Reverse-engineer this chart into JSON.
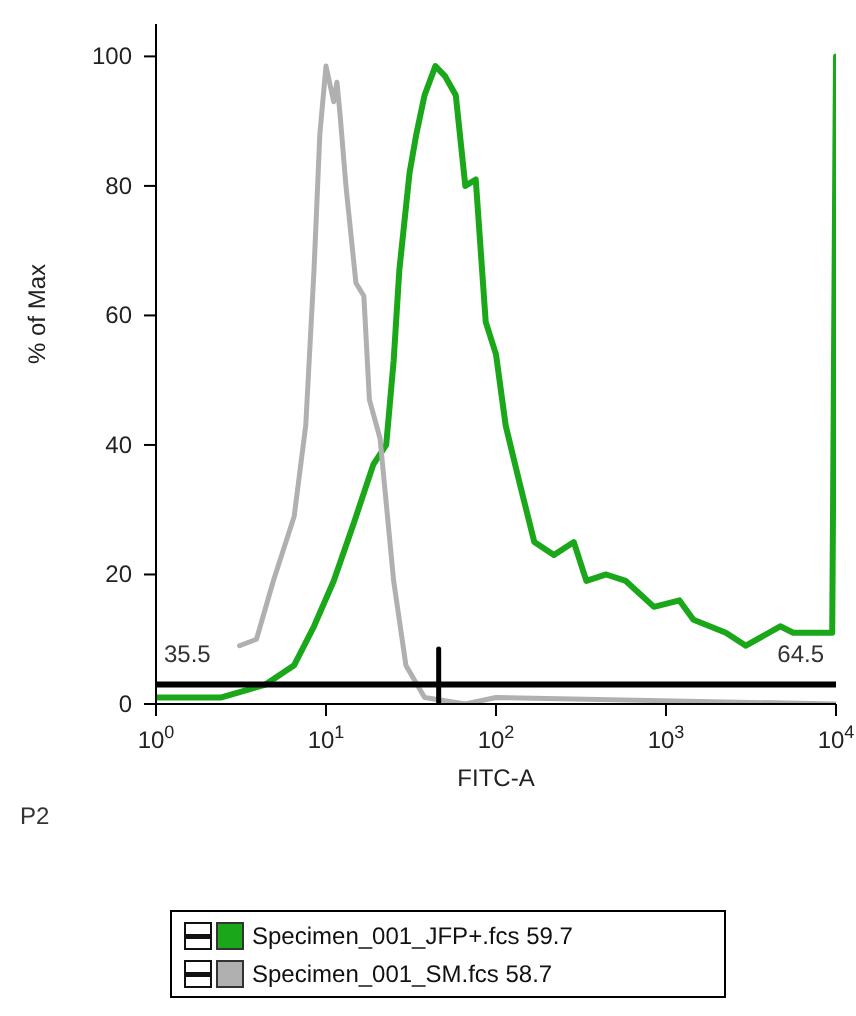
{
  "chart_data": {
    "type": "line",
    "xlabel": "FITC-A",
    "ylabel": "% of Max",
    "log": "x",
    "xlim": [
      1,
      10000
    ],
    "xticks": [
      {
        "value": 1,
        "label": "10$^{0}$"
      },
      {
        "value": 10,
        "label": "10$^{1}$"
      },
      {
        "value": 100,
        "label": "10$^{2}$"
      },
      {
        "value": 1000,
        "label": "10$^{3}$"
      },
      {
        "value": 10000,
        "label": "10$^{4}$"
      }
    ],
    "ylim": [
      0,
      105
    ],
    "yticks": [
      0,
      20,
      40,
      60,
      80,
      100
    ],
    "grid": false,
    "legend": "bottom",
    "marker": "none",
    "line_style": "solid",
    "series": [
      {
        "name": "Specimen_001_JFP+.fcs 59.7",
        "color": "#1aa81a",
        "x": [
          1,
          2.4,
          4.4,
          6.5,
          8.5,
          11.1,
          14.6,
          19,
          22.6,
          25,
          27,
          31,
          34,
          38,
          44,
          50,
          58,
          66,
          76,
          87,
          100,
          114,
          138,
          168,
          219,
          287,
          340,
          445,
          580,
          850,
          1200,
          1450,
          2250,
          2950,
          4700,
          5600,
          9500,
          10000
        ],
        "values": [
          1,
          1,
          3,
          6,
          12,
          19,
          28,
          37,
          40,
          53,
          67,
          82,
          88,
          94,
          98.5,
          97,
          94,
          80,
          81,
          59,
          54,
          43,
          34,
          25,
          23,
          25,
          19,
          20,
          19,
          15,
          16,
          13,
          11,
          9,
          12,
          11,
          11,
          100
        ]
      },
      {
        "name": "Specimen_001_SM.fcs 58.7",
        "color": "#b0b0b0",
        "x": [
          3.1,
          3.9,
          4.9,
          6.5,
          7.6,
          8.5,
          9.2,
          10,
          11.1,
          11.6,
          12.1,
          13.1,
          15,
          16.7,
          18,
          20.8,
          25,
          29.5,
          38,
          66,
          100,
          10000
        ],
        "values": [
          9,
          10,
          19,
          29,
          43,
          67,
          88,
          98.5,
          93,
          96,
          91,
          80,
          65,
          63,
          47,
          41,
          19,
          6,
          1,
          0,
          1,
          0
        ]
      },
      {
        "type": "line",
        "color": "#000000",
        "x": [
          46,
          46
        ],
        "values": [
          0,
          8.5
        ]
      }
    ],
    "ref_lines": [
      {
        "axis": "y",
        "value": 3,
        "color": "#000000"
      }
    ],
    "annotations": [
      "35.5",
      "64.5",
      "P2"
    ]
  }
}
